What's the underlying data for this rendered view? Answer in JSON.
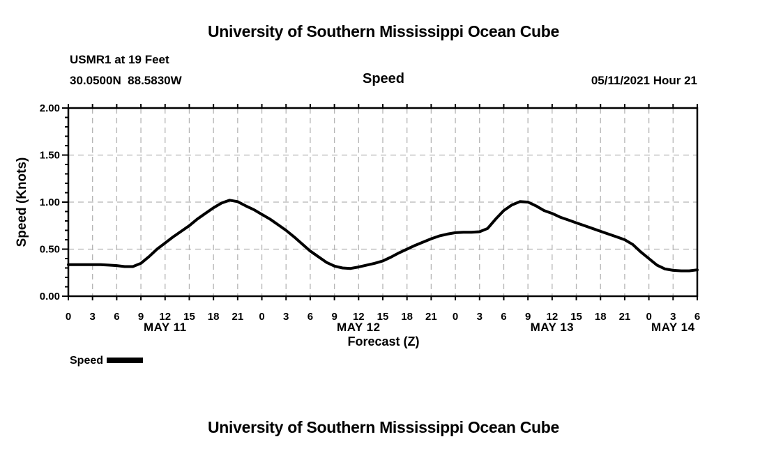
{
  "page": {
    "title_top": "University of Southern Mississippi Ocean Cube",
    "title_bottom": "University of Southern Mississippi Ocean Cube"
  },
  "header": {
    "station": "USMR1 at 19 Feet",
    "coords": "30.0500N  88.5830W",
    "chart_title": "Speed",
    "datetime": "05/11/2021 Hour 21"
  },
  "legend": {
    "entries": [
      {
        "label": "Speed",
        "color": "#000000"
      }
    ]
  },
  "chart_data": {
    "type": "line",
    "title": "Speed",
    "xlabel": "Forecast (Z)",
    "ylabel": "Speed (Knots)",
    "xlim": [
      0,
      78
    ],
    "ylim": [
      0.0,
      2.0
    ],
    "grid": true,
    "grid_color": "#b4b4b4",
    "y_ticks": [
      0.0,
      0.5,
      1.0,
      1.5,
      2.0
    ],
    "y_tick_labels": [
      "0.00",
      "0.50",
      "1.00",
      "1.50",
      "2.00"
    ],
    "y_minor_tick_step": 0.1,
    "x_tick_step": 3,
    "x_tick_labels": [
      "0",
      "3",
      "6",
      "9",
      "12",
      "15",
      "18",
      "21",
      "0",
      "3",
      "6",
      "9",
      "12",
      "15",
      "18",
      "21",
      "0",
      "3",
      "6",
      "9",
      "12",
      "15",
      "18",
      "21",
      "0",
      "3",
      "6"
    ],
    "day_labels": [
      {
        "label": "MAY 11",
        "center_hour": 12
      },
      {
        "label": "MAY 12",
        "center_hour": 36
      },
      {
        "label": "MAY 13",
        "center_hour": 60
      },
      {
        "label": "MAY 14",
        "center_hour": 75
      }
    ],
    "series": [
      {
        "name": "Speed",
        "color": "#000000",
        "x": [
          0,
          1,
          2,
          3,
          4,
          5,
          6,
          7,
          8,
          9,
          10,
          11,
          12,
          13,
          14,
          15,
          16,
          17,
          18,
          19,
          20,
          21,
          22,
          23,
          24,
          25,
          26,
          27,
          28,
          29,
          30,
          31,
          32,
          33,
          34,
          35,
          36,
          37,
          38,
          39,
          40,
          41,
          42,
          43,
          44,
          45,
          46,
          47,
          48,
          49,
          50,
          51,
          52,
          53,
          54,
          55,
          56,
          57,
          58,
          59,
          60,
          61,
          62,
          63,
          64,
          65,
          66,
          67,
          68,
          69,
          70,
          71,
          72,
          73,
          74,
          75,
          76,
          77,
          78
        ],
        "values": [
          0.335,
          0.335,
          0.335,
          0.335,
          0.335,
          0.33,
          0.325,
          0.315,
          0.315,
          0.35,
          0.42,
          0.5,
          0.565,
          0.63,
          0.69,
          0.75,
          0.82,
          0.88,
          0.94,
          0.99,
          1.02,
          1.005,
          0.96,
          0.92,
          0.87,
          0.82,
          0.76,
          0.7,
          0.63,
          0.555,
          0.48,
          0.42,
          0.36,
          0.32,
          0.3,
          0.295,
          0.31,
          0.33,
          0.35,
          0.375,
          0.415,
          0.46,
          0.5,
          0.54,
          0.575,
          0.61,
          0.64,
          0.66,
          0.675,
          0.68,
          0.68,
          0.685,
          0.72,
          0.82,
          0.91,
          0.97,
          1.005,
          1.0,
          0.96,
          0.91,
          0.88,
          0.84,
          0.81,
          0.78,
          0.75,
          0.72,
          0.69,
          0.66,
          0.63,
          0.6,
          0.55,
          0.47,
          0.4,
          0.33,
          0.29,
          0.275,
          0.27,
          0.27,
          0.28
        ]
      }
    ]
  }
}
